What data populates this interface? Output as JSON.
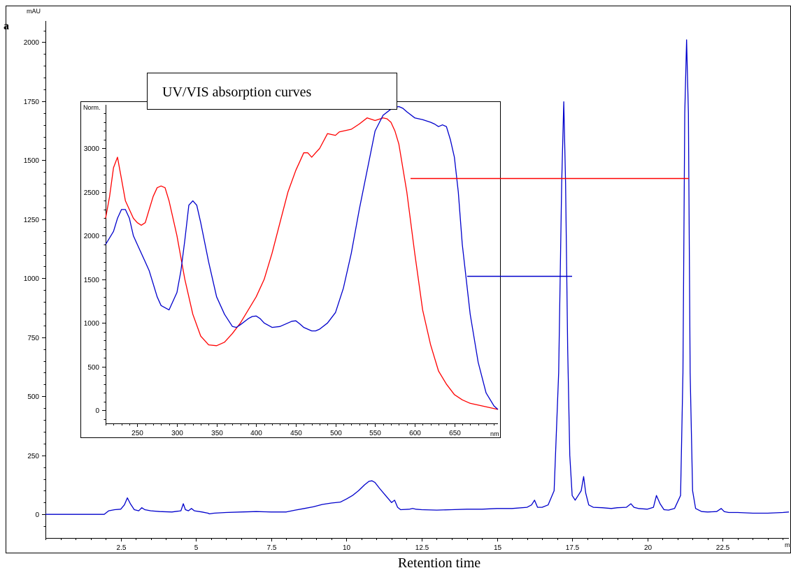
{
  "figure": {
    "panel_letter": "a",
    "x_title": "Retention time"
  },
  "chart_data": [
    {
      "type": "line",
      "name": "chromatogram",
      "y_unit": "mAU",
      "x_unit": "m",
      "xlim": [
        0,
        24.7
      ],
      "ylim": [
        -100,
        2090
      ],
      "x_ticks": [
        2.5,
        5,
        7.5,
        10,
        12.5,
        15,
        17.5,
        20,
        22.5
      ],
      "x_tick_labels": [
        "2.5",
        "5",
        "7.5",
        "10",
        "12.5",
        "15",
        "17.5",
        "20",
        "22.5"
      ],
      "y_ticks": [
        0,
        250,
        500,
        750,
        1000,
        1250,
        1500,
        1750,
        2000
      ],
      "y_tick_labels": [
        "0",
        "250",
        "500",
        "750",
        "1000",
        "1250",
        "1500",
        "1750",
        "2000"
      ],
      "color": "#0000cc",
      "series": [
        {
          "x": [
            0,
            1.95,
            2.1,
            2.3,
            2.5,
            2.62,
            2.72,
            2.82,
            2.95,
            3.1,
            3.2,
            3.3,
            3.5,
            3.8,
            4.2,
            4.5,
            4.58,
            4.65,
            4.75,
            4.85,
            4.95,
            5.2,
            5.4,
            5.45,
            5.6,
            6,
            6.5,
            7,
            7.5,
            8,
            8.3,
            8.6,
            8.9,
            9.2,
            9.5,
            9.8,
            10,
            10.2,
            10.4,
            10.6,
            10.75,
            10.85,
            10.95,
            11.1,
            11.3,
            11.5,
            11.6,
            11.7,
            11.8,
            12.1,
            12.2,
            12.3,
            12.5,
            13,
            13.5,
            14,
            14.5,
            15,
            15.5,
            16,
            16.15,
            16.25,
            16.35,
            16.5,
            16.7,
            16.9,
            17.05,
            17.15,
            17.22,
            17.28,
            17.35,
            17.42,
            17.5,
            17.6,
            17.7,
            17.8,
            17.88,
            17.95,
            18.05,
            18.2,
            18.5,
            18.8,
            19,
            19.3,
            19.45,
            19.55,
            19.7,
            20,
            20.2,
            20.3,
            20.42,
            20.55,
            20.7,
            20.9,
            21.1,
            21.18,
            21.24,
            21.3,
            21.36,
            21.42,
            21.5,
            21.6,
            21.8,
            22,
            22.3,
            22.45,
            22.55,
            22.7,
            23,
            23.5,
            24,
            24.5,
            24.7
          ],
          "y": [
            0,
            0,
            15,
            20,
            22,
            40,
            70,
            45,
            20,
            15,
            28,
            20,
            15,
            12,
            10,
            15,
            45,
            20,
            15,
            25,
            15,
            10,
            5,
            2,
            5,
            8,
            10,
            12,
            10,
            10,
            18,
            25,
            32,
            42,
            48,
            52,
            65,
            80,
            100,
            125,
            140,
            142,
            135,
            110,
            80,
            50,
            60,
            30,
            20,
            22,
            25,
            22,
            20,
            18,
            20,
            22,
            22,
            25,
            25,
            30,
            40,
            60,
            30,
            30,
            40,
            100,
            600,
            1400,
            1748,
            1400,
            700,
            250,
            80,
            60,
            80,
            100,
            160,
            90,
            40,
            30,
            28,
            25,
            28,
            30,
            45,
            30,
            25,
            22,
            30,
            80,
            45,
            20,
            18,
            25,
            80,
            600,
            1700,
            2010,
            1700,
            600,
            100,
            25,
            12,
            10,
            12,
            25,
            12,
            8,
            8,
            5,
            5,
            8,
            10
          ]
        }
      ]
    },
    {
      "type": "line",
      "name": "inset",
      "title": "UV/VIS absorption curves",
      "y_unit": "Norm.",
      "x_unit": "nm",
      "xlim": [
        210,
        705
      ],
      "ylim": [
        -150,
        3500
      ],
      "x_ticks": [
        250,
        300,
        350,
        400,
        450,
        500,
        550,
        600,
        650
      ],
      "x_tick_labels": [
        "250",
        "300",
        "350",
        "400",
        "450",
        "500",
        "550",
        "600",
        "650"
      ],
      "y_ticks": [
        0,
        500,
        1000,
        1500,
        2000,
        2500,
        3000
      ],
      "y_tick_labels": [
        "0",
        "500",
        "1000",
        "1500",
        "2000",
        "2500",
        "3000"
      ],
      "series": [
        {
          "color": "#ff0000",
          "x": [
            210,
            215,
            220,
            225,
            230,
            235,
            240,
            245,
            250,
            255,
            260,
            265,
            270,
            275,
            280,
            285,
            290,
            300,
            310,
            320,
            330,
            340,
            350,
            360,
            370,
            380,
            390,
            400,
            410,
            420,
            430,
            440,
            450,
            455,
            460,
            465,
            470,
            475,
            480,
            490,
            500,
            505,
            510,
            520,
            530,
            540,
            550,
            560,
            565,
            570,
            575,
            580,
            590,
            600,
            610,
            620,
            630,
            640,
            650,
            660,
            670,
            680,
            690,
            700,
            705
          ],
          "y": [
            2200,
            2450,
            2780,
            2900,
            2650,
            2400,
            2300,
            2200,
            2150,
            2120,
            2150,
            2300,
            2450,
            2550,
            2570,
            2550,
            2400,
            2000,
            1500,
            1100,
            850,
            750,
            740,
            780,
            880,
            1000,
            1150,
            1300,
            1500,
            1800,
            2150,
            2500,
            2750,
            2850,
            2950,
            2950,
            2900,
            2950,
            3000,
            3170,
            3150,
            3190,
            3200,
            3220,
            3280,
            3350,
            3320,
            3350,
            3340,
            3300,
            3200,
            3050,
            2500,
            1800,
            1150,
            750,
            450,
            300,
            180,
            120,
            80,
            60,
            40,
            20,
            10
          ]
        },
        {
          "color": "#0000cc",
          "x": [
            210,
            220,
            225,
            230,
            235,
            240,
            245,
            250,
            260,
            265,
            270,
            275,
            280,
            290,
            300,
            305,
            310,
            315,
            320,
            325,
            330,
            340,
            350,
            360,
            370,
            375,
            380,
            390,
            395,
            400,
            405,
            410,
            420,
            430,
            440,
            445,
            450,
            455,
            460,
            470,
            475,
            480,
            490,
            500,
            510,
            520,
            530,
            540,
            550,
            560,
            570,
            575,
            580,
            585,
            590,
            600,
            610,
            620,
            625,
            630,
            635,
            640,
            645,
            650,
            655,
            660,
            670,
            680,
            690,
            700,
            705
          ],
          "y": [
            1900,
            2050,
            2200,
            2300,
            2300,
            2200,
            2000,
            1900,
            1700,
            1600,
            1450,
            1300,
            1200,
            1150,
            1350,
            1600,
            1950,
            2350,
            2400,
            2350,
            2150,
            1700,
            1300,
            1100,
            960,
            950,
            980,
            1050,
            1075,
            1080,
            1050,
            1000,
            950,
            960,
            1000,
            1020,
            1025,
            990,
            950,
            910,
            910,
            930,
            1000,
            1120,
            1400,
            1800,
            2300,
            2750,
            3200,
            3380,
            3450,
            3470,
            3480,
            3460,
            3420,
            3350,
            3330,
            3300,
            3280,
            3250,
            3270,
            3250,
            3100,
            2900,
            2500,
            1900,
            1100,
            550,
            200,
            50,
            10
          ]
        }
      ]
    }
  ]
}
